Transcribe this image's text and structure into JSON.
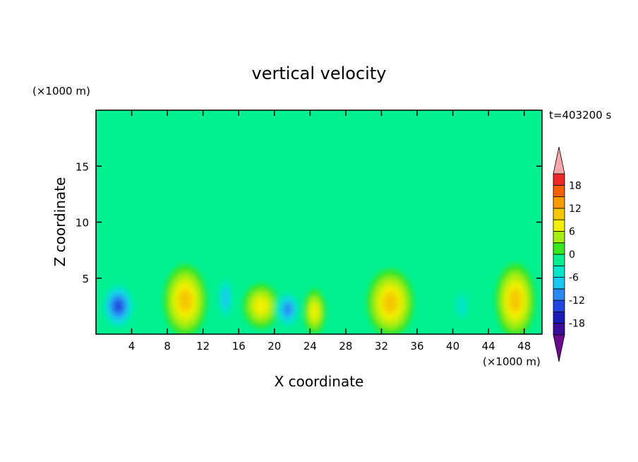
{
  "chart_data": {
    "type": "heatmap",
    "title": "vertical velocity",
    "xlabel": "X coordinate",
    "ylabel": "Z coordinate",
    "x_unit": "(×1000 m)",
    "y_unit": "(×1000 m)",
    "time_label": "t=403200 s",
    "xlim": [
      0,
      50
    ],
    "ylim": [
      0,
      20
    ],
    "x_ticks": [
      4,
      8,
      12,
      16,
      20,
      24,
      28,
      32,
      36,
      40,
      44,
      48
    ],
    "y_ticks": [
      5,
      10,
      15
    ],
    "colorbar": {
      "labels": [
        18,
        12,
        6,
        0,
        -6,
        -12,
        -18
      ],
      "levels": [
        -21,
        -18,
        -15,
        -12,
        -9,
        -6,
        -3,
        0,
        3,
        6,
        9,
        12,
        15,
        18,
        21
      ],
      "colors": [
        "#6a0a8a",
        "#3b0c9a",
        "#1a1ab8",
        "#1f46e0",
        "#2a86f2",
        "#18c8f0",
        "#00e6c8",
        "#00f090",
        "#3ae620",
        "#a8ee10",
        "#f0f000",
        "#f4c800",
        "#f89a00",
        "#f86000",
        "#f02828",
        "#f8a8a8"
      ],
      "extend": "both"
    },
    "features": [
      {
        "kind": "downdraft",
        "x": 2.5,
        "z": 2.5,
        "rx": 2.0,
        "rz": 2.2,
        "w": -14
      },
      {
        "kind": "updraft",
        "x": 10,
        "z": 3.0,
        "rx": 2.4,
        "rz": 3.2,
        "w": 10
      },
      {
        "kind": "downdraft",
        "x": 14.5,
        "z": 3.2,
        "rx": 1.0,
        "rz": 2.2,
        "w": -7
      },
      {
        "kind": "updraft",
        "x": 18.5,
        "z": 2.5,
        "rx": 2.0,
        "rz": 2.0,
        "w": 7
      },
      {
        "kind": "downdraft",
        "x": 21.5,
        "z": 2.2,
        "rx": 1.5,
        "rz": 1.8,
        "w": -12
      },
      {
        "kind": "updraft",
        "x": 24.5,
        "z": 2.0,
        "rx": 1.2,
        "rz": 2.0,
        "w": 8
      },
      {
        "kind": "updraft",
        "x": 33,
        "z": 2.8,
        "rx": 2.6,
        "rz": 3.0,
        "w": 11
      },
      {
        "kind": "downdraft",
        "x": 41,
        "z": 2.5,
        "rx": 1.0,
        "rz": 1.8,
        "w": -6
      },
      {
        "kind": "updraft",
        "x": 47,
        "z": 3.0,
        "rx": 2.2,
        "rz": 3.3,
        "w": 12
      }
    ]
  }
}
